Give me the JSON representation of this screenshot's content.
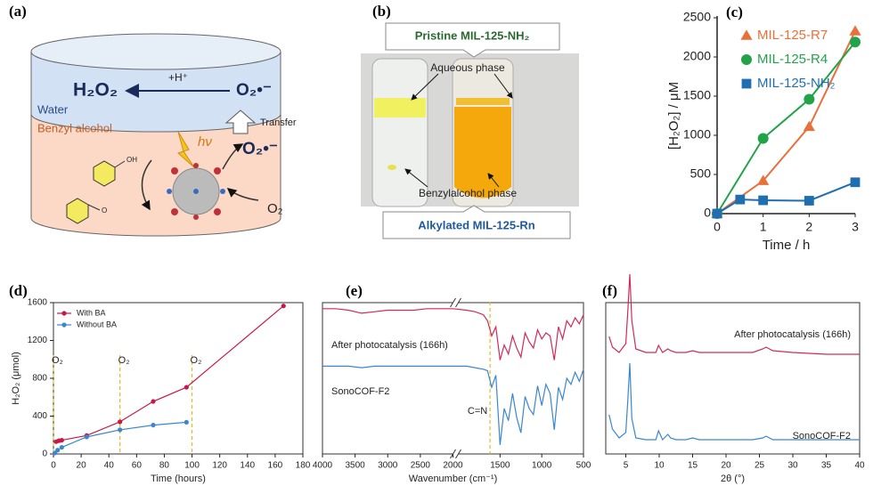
{
  "panel_a": {
    "label": "(a)",
    "water_product": "H₂O₂",
    "proton": "+H⁺",
    "superoxide_water": "O₂•⁻",
    "water_layer": "Water",
    "organic_layer": "Benzyl alcohol",
    "transfer": "Transfer",
    "superoxide_organic": "O₂•⁻",
    "light": "hν",
    "oxygen": "O₂",
    "hydroxyl": "OH",
    "carbonyl": "O"
  },
  "panel_b": {
    "label": "(b)",
    "top_box": "Pristine MIL-125-NH₂",
    "aqueous": "Aqueous phase",
    "organic": "Benzylalcohol phase",
    "bottom_box": "Alkylated MIL-125-Rn"
  },
  "chart_data": [
    {
      "type": "scatter",
      "label": "(c)",
      "xlabel": "Time / h",
      "ylabel": "[H₂O₂] / μM",
      "xlim": [
        0,
        3
      ],
      "xticks": [
        0,
        1,
        2,
        3
      ],
      "ylim": [
        0,
        2500
      ],
      "yticks": [
        0,
        500,
        1000,
        1500,
        2000,
        2500
      ],
      "series": [
        {
          "name": "MIL-125-R7",
          "color": "#e8703a",
          "marker": "triangle",
          "x": [
            0,
            1,
            2,
            3
          ],
          "values": [
            0,
            420,
            1110,
            2330
          ]
        },
        {
          "name": "MIL-125-R4",
          "color": "#22a34a",
          "marker": "circle",
          "x": [
            0,
            1,
            2,
            3
          ],
          "values": [
            0,
            960,
            1460,
            2190
          ]
        },
        {
          "name": "MIL-125-NH₂",
          "color": "#1f6fb0",
          "marker": "square",
          "x": [
            0,
            0.5,
            1,
            2,
            3
          ],
          "values": [
            0,
            180,
            170,
            165,
            400
          ]
        }
      ]
    },
    {
      "type": "line",
      "label": "(d)",
      "xlabel": "Time (hours)",
      "ylabel": "H₂O₂ (μmol)",
      "xlim": [
        0,
        180
      ],
      "xticks": [
        0,
        20,
        40,
        60,
        80,
        100,
        120,
        140,
        160,
        180
      ],
      "ylim": [
        0,
        1600
      ],
      "yticks": [
        0,
        400,
        800,
        1200,
        1600
      ],
      "series": [
        {
          "name": "With BA",
          "color": "#c8174a",
          "x": [
            2,
            4,
            6,
            24,
            48,
            72,
            96,
            166
          ],
          "values": [
            130,
            140,
            145,
            195,
            340,
            555,
            705,
            1565
          ]
        },
        {
          "name": "Without BA",
          "color": "#3a87d0",
          "x": [
            1,
            3,
            6,
            24,
            48,
            72,
            96
          ],
          "values": [
            10,
            40,
            70,
            180,
            255,
            305,
            335
          ]
        }
      ],
      "annotations": [
        {
          "text": "O₂",
          "x": 0
        },
        {
          "text": "O₂",
          "x": 48
        },
        {
          "text": "O₂",
          "x": 100
        }
      ]
    },
    {
      "type": "spectrum",
      "label": "(e)",
      "xlabel": "Wavenumber (cm⁻¹)",
      "xlim": [
        4000,
        500
      ],
      "axis_break": 2000,
      "xticks": [
        4000,
        3500,
        3000,
        2500,
        2000,
        1500,
        1000,
        500
      ],
      "ylim": [
        0,
        100
      ],
      "series": [
        {
          "name": "After photocatalysis (166h)",
          "color": "#d02a5a",
          "x": [
            4000,
            3800,
            3600,
            3400,
            3200,
            3000,
            2800,
            2600,
            2400,
            2200,
            2000,
            1900,
            1800,
            1700,
            1650,
            1600,
            1550,
            1500,
            1450,
            1400,
            1350,
            1300,
            1250,
            1200,
            1150,
            1100,
            1050,
            1000,
            950,
            900,
            850,
            800,
            750,
            700,
            650,
            600,
            550,
            500
          ],
          "values": [
            96,
            96,
            95,
            93,
            94,
            95,
            95,
            95,
            96,
            96,
            96,
            95,
            94,
            92,
            88,
            78,
            84,
            62,
            72,
            66,
            78,
            70,
            64,
            80,
            74,
            70,
            82,
            76,
            80,
            78,
            62,
            84,
            76,
            88,
            84,
            90,
            86,
            92
          ]
        },
        {
          "name": "SonoCOF-F2",
          "color": "#3a87d0",
          "x": [
            4000,
            3800,
            3600,
            3400,
            3200,
            3000,
            2800,
            2600,
            2400,
            2200,
            2000,
            1900,
            1800,
            1700,
            1650,
            1600,
            1550,
            1500,
            1450,
            1400,
            1350,
            1300,
            1250,
            1200,
            1150,
            1100,
            1050,
            1000,
            950,
            900,
            850,
            800,
            750,
            700,
            650,
            600,
            550,
            500
          ],
          "values": [
            58,
            58,
            58,
            57,
            58,
            58,
            58,
            58,
            58,
            58,
            58,
            58,
            57,
            56,
            55,
            44,
            52,
            6,
            30,
            22,
            40,
            24,
            14,
            38,
            30,
            26,
            45,
            32,
            46,
            40,
            16,
            44,
            36,
            50,
            46,
            54,
            48,
            56
          ]
        }
      ],
      "annotations": [
        {
          "text": "C=N",
          "x": 1620
        }
      ]
    },
    {
      "type": "spectrum",
      "label": "(f)",
      "xlabel": "2θ (°)",
      "xlim": [
        2,
        40
      ],
      "xticks": [
        5,
        10,
        15,
        20,
        25,
        30,
        35,
        40
      ],
      "ylim": [
        0,
        105
      ],
      "series": [
        {
          "name": "After photocatalysis (166h)",
          "color": "#d02a5a",
          "x": [
            2.5,
            3,
            4,
            5,
            5.3,
            5.6,
            5.9,
            6.5,
            8,
            9.5,
            9.9,
            10.5,
            11.3,
            11.7,
            12.5,
            14,
            15,
            16,
            20,
            24,
            25.5,
            26,
            27,
            30,
            35,
            40
          ],
          "values": [
            66,
            60,
            57,
            62,
            80,
            101,
            75,
            59,
            57,
            57,
            61,
            57,
            59,
            58,
            57,
            57,
            58,
            57,
            57,
            57,
            59,
            60,
            58,
            57,
            56,
            56
          ]
        },
        {
          "name": "SonoCOF-F2",
          "color": "#3a87d0",
          "x": [
            2.5,
            3,
            4,
            5,
            5.3,
            5.6,
            5.9,
            6.5,
            8,
            9.5,
            9.9,
            10.5,
            11.3,
            11.7,
            12.5,
            14,
            15,
            16,
            20,
            24,
            25.5,
            26,
            27,
            30,
            35,
            40
          ],
          "values": [
            22,
            14,
            9,
            12,
            30,
            51,
            20,
            9,
            8,
            8,
            13,
            8,
            11,
            9,
            8,
            8,
            9,
            8,
            8,
            8,
            9,
            10,
            8,
            8,
            8,
            8
          ]
        }
      ]
    }
  ]
}
